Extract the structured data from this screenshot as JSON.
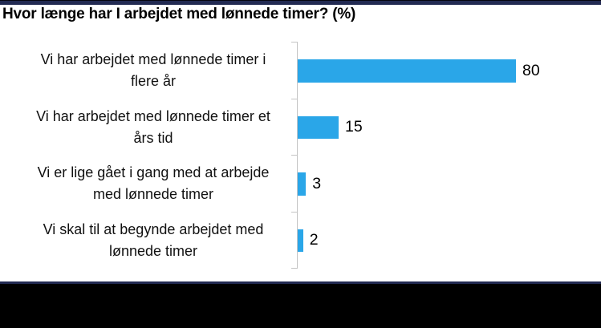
{
  "header": {
    "title": "Hvor længe har I arbejdet med lønnede timer? (%)"
  },
  "chart_data": {
    "type": "bar",
    "orientation": "horizontal",
    "title": "Hvor længe har I arbejdet med lønnede timer? (%)",
    "categories": [
      "Vi har arbejdet med lønnede timer i flere år",
      "Vi har arbejdet med lønnede timer et års tid",
      "Vi er lige gået i gang med at arbejde med lønnede timer",
      "Vi skal til at begynde arbejdet med lønnede timer"
    ],
    "category_lines": [
      "Vi har arbejdet med lønnede timer i\nflere år",
      "Vi har arbejdet med lønnede timer et\nårs tid",
      "Vi er lige gået i gang med at arbejde\nmed lønnede timer",
      "Vi skal til at begynde arbejdet med\nlønnede timer"
    ],
    "values": [
      80,
      15,
      3,
      2
    ],
    "unit": "%",
    "xlim": [
      0,
      100
    ],
    "grid": false,
    "legend": false,
    "value_labels_shown": true,
    "axis_ticks": "category boundaries, left side of vertical axis"
  },
  "colors": {
    "bar": "#2AA6E8",
    "axis": "#C4C4C4",
    "top_accent_bar": "#222A52",
    "bottom_accent_line": "#222A52",
    "bottom_bar": "#000000",
    "background": "#FFFFFF",
    "title_text": "#000000",
    "label_text": "#111111"
  }
}
